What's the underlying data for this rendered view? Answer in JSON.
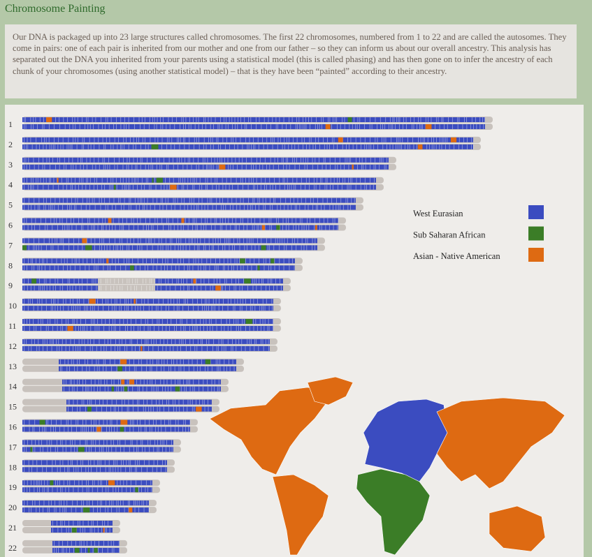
{
  "header": {
    "title": "Chromosome Painting"
  },
  "intro": "Our DNA is packaged up into 23 large structures called chromosomes. The first 22 chromosomes, numbered from 1 to 22 and are called the autosomes. They come in pairs: one of each pair is inherited from our mother and one from our father – so they can inform us about our overall ancestry. This analysis has separated out the DNA you inherited from your parents using a statistical model (this is called phasing) and has then gone on to infer the ancestry of each chunk of your chromosomes (using another statistical model) – that is they have been “painted” according to their ancestry.",
  "chromosomes": [
    "1",
    "2",
    "3",
    "4",
    "5",
    "6",
    "7",
    "8",
    "9",
    "10",
    "11",
    "12",
    "13",
    "14",
    "15",
    "16",
    "17",
    "18",
    "19",
    "20",
    "21",
    "22"
  ],
  "legend": [
    {
      "name": "West Eurasian",
      "color": "#3b4cc0"
    },
    {
      "name": "Sub Saharan African",
      "color": "#3b7d27"
    },
    {
      "name": "Asian - Native American",
      "color": "#de6a12"
    }
  ]
}
